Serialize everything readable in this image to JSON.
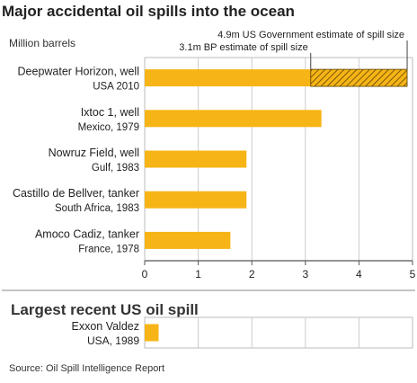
{
  "chart_data": [
    {
      "type": "bar",
      "orientation": "horizontal",
      "title": "Major accidental oil spills into the ocean",
      "unit_label": "Million barrels",
      "xlim": [
        0,
        5
      ],
      "x_ticks": [
        "0",
        "1",
        "2",
        "3",
        "4",
        "5"
      ],
      "grid": true,
      "categories": [
        {
          "name": "Deepwater Horizon, well",
          "place": "USA 2010"
        },
        {
          "name": "Ixtoc 1, well",
          "place": "Mexico, 1979"
        },
        {
          "name": "Nowruz Field, well",
          "place": "Gulf, 1983"
        },
        {
          "name": "Castillo de Bellver, tanker",
          "place": "South Africa, 1983"
        },
        {
          "name": "Amoco Cadiz, tanker",
          "place": "France, 1978"
        }
      ],
      "values": [
        3.1,
        3.3,
        1.9,
        1.9,
        1.6
      ],
      "extended": [
        {
          "category_index": 0,
          "from": 3.1,
          "to": 4.9,
          "pattern": "hatched"
        }
      ],
      "annotations": [
        {
          "text": "4.9m US Government estimate of spill size",
          "value": 4.9
        },
        {
          "text": "3.1m BP estimate of spill size",
          "value": 3.1
        }
      ],
      "colors": {
        "bar": "#f7b416",
        "hatch": "#5a4200",
        "grid": "#cccccc",
        "axis": "#555555"
      }
    },
    {
      "type": "bar",
      "orientation": "horizontal",
      "title": "Largest recent US oil spill",
      "xlim": [
        0,
        5
      ],
      "grid": true,
      "categories": [
        {
          "name": "Exxon Valdez",
          "place": "USA, 1989"
        }
      ],
      "values": [
        0.26
      ],
      "colors": {
        "bar": "#f7b416",
        "grid": "#cccccc"
      }
    }
  ],
  "source": "Source: Oil Spill Intelligence Report"
}
